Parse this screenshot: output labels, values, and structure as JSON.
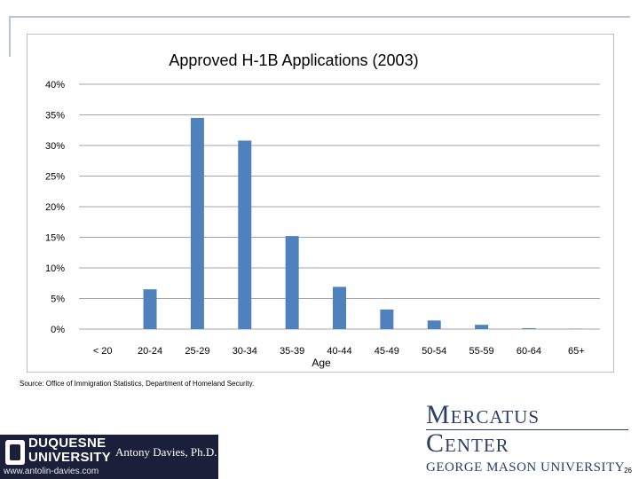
{
  "chart_data": {
    "type": "bar",
    "title": "Approved H-1B Applications (2003)",
    "xlabel": "Age",
    "ylabel": "",
    "categories": [
      "< 20",
      "20-24",
      "25-29",
      "30-34",
      "35-39",
      "40-44",
      "45-49",
      "50-54",
      "55-59",
      "60-64",
      "65+"
    ],
    "values": [
      0.0,
      6.5,
      34.5,
      30.8,
      15.2,
      6.9,
      3.2,
      1.4,
      0.7,
      0.15,
      0.05
    ],
    "ylim": [
      0,
      40
    ],
    "yticks": [
      "0%",
      "5%",
      "10%",
      "15%",
      "20%",
      "25%",
      "30%",
      "35%",
      "40%"
    ],
    "grid": true,
    "legend": "none",
    "bar_color": "#4f81bd"
  },
  "footer": {
    "source": "Source:  Office of Immigration Statistics, Department of Homeland Security.",
    "mercatus_title": "Mercatus Center",
    "mercatus_subtitle": "GEORGE MASON UNIVERSITY",
    "duquesne_line1": "DUQUESNE",
    "duquesne_line2": "UNIVERSITY",
    "person": "Antony Davies, Ph.D.",
    "url": "www.antolin-davies.com",
    "page_number": "26"
  }
}
